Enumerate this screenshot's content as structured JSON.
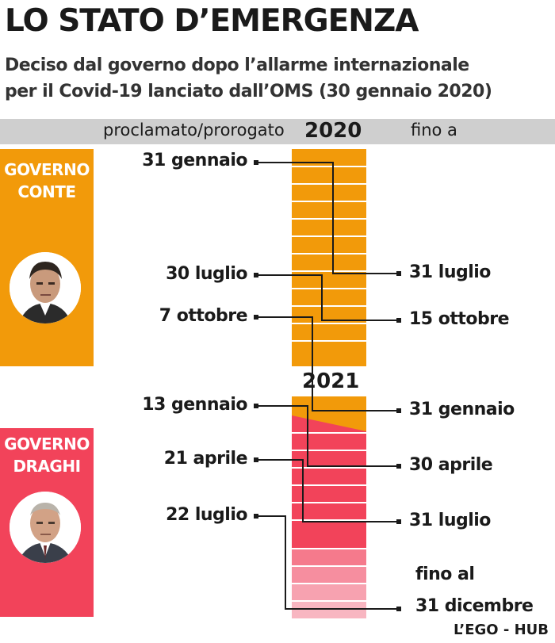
{
  "title": "LO STATO D’EMERGENZA",
  "subtitle": {
    "line1": "Deciso dal governo dopo l’allarme internazionale",
    "line2": "per il Covid-19 lanciato dall’OMS (30 gennaio 2020)"
  },
  "header_band": {
    "left_label": "proclamato/prorogato",
    "year_2020": "2020",
    "right_label": "fino a"
  },
  "year_2021": "2021",
  "governments": [
    {
      "name": "GOVERNO\nCONTE",
      "color": "#f29a0a"
    },
    {
      "name": "GOVERNO\nDRAGHI",
      "color": "#f2435a"
    }
  ],
  "proclaimed_dates": [
    "31 gennaio",
    "30 luglio",
    "7 ottobre",
    "13 gennaio",
    "21 aprile",
    "22 luglio"
  ],
  "end_dates": [
    "31 luglio",
    "15 ottobre",
    "31 gennaio",
    "30 aprile",
    "31 luglio"
  ],
  "final_note": {
    "line1": "fino al",
    "line2": "31 dicembre"
  },
  "colors": {
    "orange": "#f29a0a",
    "red": "#f2435a",
    "pink_light": "#f7a7b5",
    "band": "#cfcfcf",
    "line": "#1a1a1a"
  },
  "footer": "L’EGO - HUB"
}
